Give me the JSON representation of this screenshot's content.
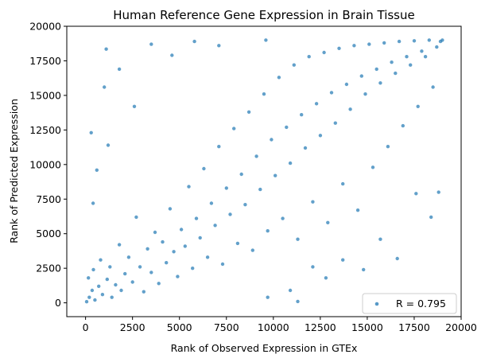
{
  "chart_data": {
    "type": "scatter",
    "title": "Human Reference Gene Expression in Brain Tissue",
    "xlabel": "Rank of Observed Expression in GTEx",
    "ylabel": "Rank of Predicted Expression",
    "xlim": [
      -1000,
      20000
    ],
    "ylim": [
      -1000,
      20000
    ],
    "xticks": [
      0,
      2500,
      5000,
      7500,
      10000,
      12500,
      15000,
      17500,
      20000
    ],
    "yticks": [
      0,
      2500,
      5000,
      7500,
      10000,
      12500,
      15000,
      17500,
      20000
    ],
    "grid": false,
    "legend": {
      "placement": "lower-right",
      "entries": [
        "R = 0.795"
      ]
    },
    "series": [
      {
        "color": "#1f77b4",
        "points": [
          [
            60,
            80
          ],
          [
            150,
            1800
          ],
          [
            200,
            400
          ],
          [
            350,
            900
          ],
          [
            420,
            2400
          ],
          [
            500,
            200
          ],
          [
            700,
            1200
          ],
          [
            800,
            3100
          ],
          [
            900,
            600
          ],
          [
            1100,
            18350
          ],
          [
            1150,
            1700
          ],
          [
            1300,
            2600
          ],
          [
            1400,
            400
          ],
          [
            1600,
            1300
          ],
          [
            1800,
            4200
          ],
          [
            1900,
            900
          ],
          [
            2100,
            2100
          ],
          [
            2300,
            3300
          ],
          [
            2500,
            1500
          ],
          [
            2700,
            6200
          ],
          [
            2900,
            2600
          ],
          [
            3100,
            800
          ],
          [
            3300,
            3900
          ],
          [
            3500,
            2200
          ],
          [
            3700,
            5100
          ],
          [
            3900,
            1400
          ],
          [
            4100,
            4400
          ],
          [
            4300,
            2900
          ],
          [
            4500,
            6800
          ],
          [
            4700,
            3700
          ],
          [
            4900,
            1900
          ],
          [
            5100,
            5300
          ],
          [
            5300,
            4100
          ],
          [
            5500,
            8400
          ],
          [
            5700,
            2500
          ],
          [
            5900,
            6100
          ],
          [
            6100,
            4700
          ],
          [
            6300,
            9700
          ],
          [
            6500,
            3300
          ],
          [
            6700,
            7200
          ],
          [
            6900,
            5600
          ],
          [
            7100,
            11300
          ],
          [
            7300,
            2800
          ],
          [
            7500,
            8300
          ],
          [
            7700,
            6400
          ],
          [
            7900,
            12600
          ],
          [
            8100,
            4300
          ],
          [
            8300,
            9300
          ],
          [
            8500,
            7100
          ],
          [
            8700,
            13800
          ],
          [
            8900,
            3800
          ],
          [
            9100,
            10600
          ],
          [
            9300,
            8200
          ],
          [
            9500,
            15100
          ],
          [
            9700,
            5200
          ],
          [
            9900,
            11800
          ],
          [
            10100,
            9200
          ],
          [
            10300,
            16300
          ],
          [
            10500,
            6100
          ],
          [
            10700,
            12700
          ],
          [
            10900,
            10100
          ],
          [
            11100,
            17200
          ],
          [
            11300,
            4600
          ],
          [
            11500,
            13600
          ],
          [
            11700,
            11200
          ],
          [
            11900,
            17800
          ],
          [
            12100,
            7300
          ],
          [
            12300,
            14400
          ],
          [
            12500,
            12100
          ],
          [
            12700,
            18100
          ],
          [
            12900,
            5800
          ],
          [
            13100,
            15200
          ],
          [
            13300,
            13000
          ],
          [
            13500,
            18400
          ],
          [
            13700,
            8600
          ],
          [
            13900,
            15800
          ],
          [
            14100,
            14000
          ],
          [
            14300,
            18600
          ],
          [
            14500,
            6700
          ],
          [
            14700,
            16400
          ],
          [
            14900,
            15100
          ],
          [
            15100,
            18700
          ],
          [
            15300,
            9800
          ],
          [
            15500,
            16900
          ],
          [
            15700,
            15900
          ],
          [
            15900,
            18800
          ],
          [
            16100,
            11300
          ],
          [
            16300,
            17400
          ],
          [
            16500,
            16600
          ],
          [
            16700,
            18900
          ],
          [
            16900,
            12800
          ],
          [
            17100,
            17800
          ],
          [
            17300,
            17200
          ],
          [
            17500,
            18950
          ],
          [
            17700,
            14200
          ],
          [
            17900,
            18200
          ],
          [
            18100,
            17800
          ],
          [
            18300,
            19000
          ],
          [
            18500,
            15600
          ],
          [
            18700,
            18500
          ],
          [
            18900,
            18900
          ],
          [
            19000,
            19000
          ],
          [
            300,
            12300
          ],
          [
            600,
            9600
          ],
          [
            1000,
            15600
          ],
          [
            1800,
            16900
          ],
          [
            2600,
            14200
          ],
          [
            3500,
            18700
          ],
          [
            4600,
            17900
          ],
          [
            5800,
            18900
          ],
          [
            7100,
            18600
          ],
          [
            9600,
            19000
          ],
          [
            400,
            7200
          ],
          [
            1200,
            11400
          ],
          [
            9700,
            400
          ],
          [
            11300,
            100
          ],
          [
            12800,
            1800
          ],
          [
            14800,
            2400
          ],
          [
            16600,
            3200
          ],
          [
            18400,
            6200
          ],
          [
            13700,
            3100
          ],
          [
            15700,
            4600
          ],
          [
            17600,
            7900
          ],
          [
            10900,
            900
          ],
          [
            12100,
            2600
          ],
          [
            18800,
            8000
          ]
        ]
      }
    ]
  }
}
